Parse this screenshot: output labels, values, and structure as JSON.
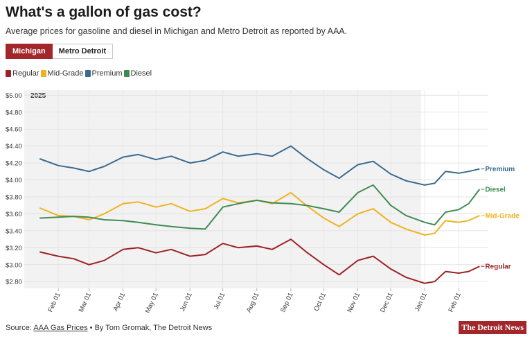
{
  "header": {
    "title": "What's a gallon of gas cost?",
    "subtitle": "Average prices for gasoline and diesel in Michigan and Metro Detroit as reported by AAA."
  },
  "tabs": [
    {
      "label": "Michigan",
      "active": true
    },
    {
      "label": "Metro Detroit",
      "active": false
    }
  ],
  "colors": {
    "regular": "#9b2226",
    "midgrade": "#f0b31f",
    "premium": "#3a6a8f",
    "diesel": "#3e8b52"
  },
  "footer": {
    "source_prefix": "Source: ",
    "source_link": "AAA Gas Prices",
    "byline": " • By Tom Gromak, The Detroit News",
    "logo": "The Detroit News"
  },
  "chart_data": {
    "type": "line",
    "year_label": "2025",
    "x_ticks": [
      "Feb 01",
      "Mar 01",
      "Apr 01",
      "May 01",
      "Jun 01",
      "Jul 01",
      "Aug 01",
      "Sep 01",
      "Oct 01",
      "Nov 01",
      "Dec 01",
      "Jan 01",
      "Feb 01"
    ],
    "y_ticks": [
      "$5.00",
      "$4.80",
      "$4.60",
      "$4.40",
      "$4.20",
      "$4.00",
      "$3.80",
      "$3.60",
      "$3.40",
      "$3.20",
      "$3.00",
      "$2.80"
    ],
    "ylim": [
      2.72,
      5.06
    ],
    "grid": true,
    "legend_position": "top-left",
    "series": [
      {
        "name": "Regular",
        "end_label": "Regular",
        "color_key": "regular",
        "points": [
          [
            "2025-01-15",
            3.15
          ],
          [
            "2025-02-01",
            3.1
          ],
          [
            "2025-02-15",
            3.07
          ],
          [
            "2025-03-01",
            3.0
          ],
          [
            "2025-03-15",
            3.05
          ],
          [
            "2025-04-01",
            3.18
          ],
          [
            "2025-04-15",
            3.2
          ],
          [
            "2025-05-01",
            3.14
          ],
          [
            "2025-05-15",
            3.18
          ],
          [
            "2025-06-01",
            3.1
          ],
          [
            "2025-06-15",
            3.12
          ],
          [
            "2025-07-01",
            3.25
          ],
          [
            "2025-07-15",
            3.2
          ],
          [
            "2025-08-01",
            3.22
          ],
          [
            "2025-08-15",
            3.18
          ],
          [
            "2025-09-01",
            3.3
          ],
          [
            "2025-09-15",
            3.15
          ],
          [
            "2025-10-01",
            3.0
          ],
          [
            "2025-10-15",
            2.88
          ],
          [
            "2025-11-01",
            3.05
          ],
          [
            "2025-11-15",
            3.1
          ],
          [
            "2025-12-01",
            2.95
          ],
          [
            "2025-12-15",
            2.85
          ],
          [
            "2026-01-01",
            2.78
          ],
          [
            "2026-01-10",
            2.8
          ],
          [
            "2026-01-20",
            2.92
          ],
          [
            "2026-02-01",
            2.9
          ],
          [
            "2026-02-10",
            2.92
          ],
          [
            "2026-02-20",
            2.98
          ]
        ]
      },
      {
        "name": "Mid-Grade",
        "end_label": "Mid-Grade",
        "color_key": "midgrade",
        "points": [
          [
            "2025-01-15",
            3.67
          ],
          [
            "2025-02-01",
            3.58
          ],
          [
            "2025-02-15",
            3.57
          ],
          [
            "2025-03-01",
            3.53
          ],
          [
            "2025-03-15",
            3.6
          ],
          [
            "2025-04-01",
            3.72
          ],
          [
            "2025-04-15",
            3.74
          ],
          [
            "2025-05-01",
            3.68
          ],
          [
            "2025-05-15",
            3.72
          ],
          [
            "2025-06-01",
            3.63
          ],
          [
            "2025-06-15",
            3.66
          ],
          [
            "2025-07-01",
            3.78
          ],
          [
            "2025-07-15",
            3.73
          ],
          [
            "2025-08-01",
            3.76
          ],
          [
            "2025-08-15",
            3.72
          ],
          [
            "2025-09-01",
            3.85
          ],
          [
            "2025-09-15",
            3.7
          ],
          [
            "2025-10-01",
            3.55
          ],
          [
            "2025-10-15",
            3.45
          ],
          [
            "2025-11-01",
            3.6
          ],
          [
            "2025-11-15",
            3.66
          ],
          [
            "2025-12-01",
            3.5
          ],
          [
            "2025-12-15",
            3.42
          ],
          [
            "2026-01-01",
            3.35
          ],
          [
            "2026-01-10",
            3.37
          ],
          [
            "2026-01-20",
            3.52
          ],
          [
            "2026-02-01",
            3.5
          ],
          [
            "2026-02-10",
            3.52
          ],
          [
            "2026-02-20",
            3.58
          ]
        ]
      },
      {
        "name": "Premium",
        "end_label": "Premium",
        "color_key": "premium",
        "points": [
          [
            "2025-01-15",
            4.25
          ],
          [
            "2025-02-01",
            4.17
          ],
          [
            "2025-02-15",
            4.14
          ],
          [
            "2025-03-01",
            4.1
          ],
          [
            "2025-03-15",
            4.16
          ],
          [
            "2025-04-01",
            4.27
          ],
          [
            "2025-04-15",
            4.3
          ],
          [
            "2025-05-01",
            4.24
          ],
          [
            "2025-05-15",
            4.28
          ],
          [
            "2025-06-01",
            4.2
          ],
          [
            "2025-06-15",
            4.23
          ],
          [
            "2025-07-01",
            4.33
          ],
          [
            "2025-07-15",
            4.28
          ],
          [
            "2025-08-01",
            4.31
          ],
          [
            "2025-08-15",
            4.28
          ],
          [
            "2025-09-01",
            4.4
          ],
          [
            "2025-09-15",
            4.26
          ],
          [
            "2025-10-01",
            4.12
          ],
          [
            "2025-10-15",
            4.02
          ],
          [
            "2025-11-01",
            4.18
          ],
          [
            "2025-11-15",
            4.22
          ],
          [
            "2025-12-01",
            4.07
          ],
          [
            "2025-12-15",
            3.99
          ],
          [
            "2026-01-01",
            3.94
          ],
          [
            "2026-01-10",
            3.96
          ],
          [
            "2026-01-20",
            4.1
          ],
          [
            "2026-02-01",
            4.08
          ],
          [
            "2026-02-10",
            4.1
          ],
          [
            "2026-02-20",
            4.13
          ]
        ]
      },
      {
        "name": "Diesel",
        "end_label": "Diesel",
        "color_key": "diesel",
        "points": [
          [
            "2025-01-15",
            3.55
          ],
          [
            "2025-02-01",
            3.56
          ],
          [
            "2025-02-15",
            3.57
          ],
          [
            "2025-03-01",
            3.56
          ],
          [
            "2025-03-15",
            3.53
          ],
          [
            "2025-04-01",
            3.52
          ],
          [
            "2025-04-15",
            3.5
          ],
          [
            "2025-05-01",
            3.47
          ],
          [
            "2025-05-15",
            3.45
          ],
          [
            "2025-06-01",
            3.43
          ],
          [
            "2025-06-15",
            3.42
          ],
          [
            "2025-07-01",
            3.68
          ],
          [
            "2025-07-15",
            3.72
          ],
          [
            "2025-08-01",
            3.76
          ],
          [
            "2025-08-15",
            3.73
          ],
          [
            "2025-09-01",
            3.72
          ],
          [
            "2025-09-15",
            3.7
          ],
          [
            "2025-10-01",
            3.66
          ],
          [
            "2025-10-15",
            3.62
          ],
          [
            "2025-11-01",
            3.85
          ],
          [
            "2025-11-15",
            3.94
          ],
          [
            "2025-12-01",
            3.7
          ],
          [
            "2025-12-15",
            3.58
          ],
          [
            "2026-01-01",
            3.5
          ],
          [
            "2026-01-10",
            3.47
          ],
          [
            "2026-01-20",
            3.62
          ],
          [
            "2026-02-01",
            3.65
          ],
          [
            "2026-02-10",
            3.72
          ],
          [
            "2026-02-20",
            3.89
          ]
        ]
      }
    ]
  }
}
